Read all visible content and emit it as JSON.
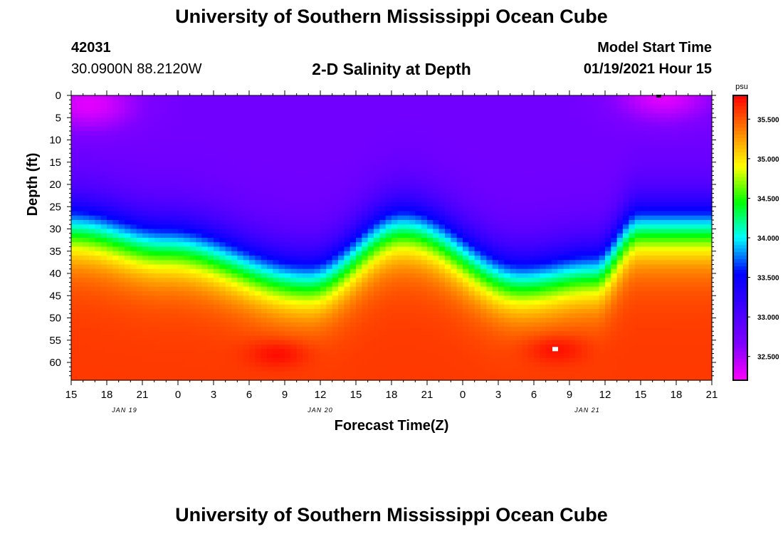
{
  "header": {
    "title": "University of Southern Mississippi Ocean Cube",
    "station_id": "42031",
    "station_coords": "30.0900N 88.2120W",
    "model_label": "Model Start Time",
    "model_time": "01/19/2021 Hour 15"
  },
  "footer": {
    "title": "University of Southern Mississippi Ocean Cube"
  },
  "chart_data": {
    "type": "heatmap",
    "title": "2-D Salinity at Depth",
    "xlabel": "Forecast Time(Z)",
    "ylabel": "Depth (ft)",
    "x_ticks": [
      "15",
      "18",
      "21",
      "0",
      "3",
      "6",
      "9",
      "12",
      "15",
      "18",
      "21",
      "0",
      "3",
      "6",
      "9",
      "12",
      "15",
      "18",
      "21"
    ],
    "x_tick_hours": [
      0,
      3,
      6,
      9,
      12,
      15,
      18,
      21,
      24,
      27,
      30,
      33,
      36,
      39,
      42,
      45,
      48,
      51,
      54
    ],
    "x_range_hours": [
      0,
      54
    ],
    "date_labels": [
      {
        "text": "JAN 19",
        "hour": 4.5
      },
      {
        "text": "JAN 20",
        "hour": 21
      },
      {
        "text": "JAN 21",
        "hour": 43.5
      }
    ],
    "y_ticks": [
      0,
      5,
      10,
      15,
      20,
      25,
      30,
      35,
      40,
      45,
      50,
      55,
      60
    ],
    "y_range": [
      0,
      64
    ],
    "colorbar": {
      "unit": "psu",
      "range": [
        32.2,
        35.8
      ],
      "tick_labels": [
        "32.500",
        "33.000",
        "33.500",
        "34.000",
        "34.500",
        "35.000",
        "35.500"
      ],
      "tick_values": [
        32.5,
        33.0,
        33.5,
        34.0,
        34.5,
        35.0,
        35.5
      ]
    },
    "halocline_depth_profile": {
      "hours": [
        0,
        8,
        20,
        28,
        38,
        44,
        48,
        54
      ],
      "depth_ft": [
        25,
        29,
        37,
        25,
        37,
        35,
        25,
        25
      ]
    },
    "features": [
      {
        "type": "low-salinity-patch",
        "hour": 1.5,
        "depth_ft": 2,
        "value": 32.3
      },
      {
        "type": "low-salinity-patch",
        "hour": 50,
        "depth_ft": 0,
        "value": 32.3
      },
      {
        "type": "high-salinity-core",
        "hour": 17.5,
        "depth_ft": 58,
        "value": 35.8
      },
      {
        "type": "high-salinity-core",
        "hour": 40.8,
        "depth_ft": 57,
        "value": 35.8
      }
    ],
    "colors": {
      "scale": [
        "#ff00ff",
        "#8000ff",
        "#4000ff",
        "#0000ff",
        "#00ffff",
        "#00ff00",
        "#ffff00",
        "#ff8000",
        "#ff0000"
      ]
    }
  }
}
